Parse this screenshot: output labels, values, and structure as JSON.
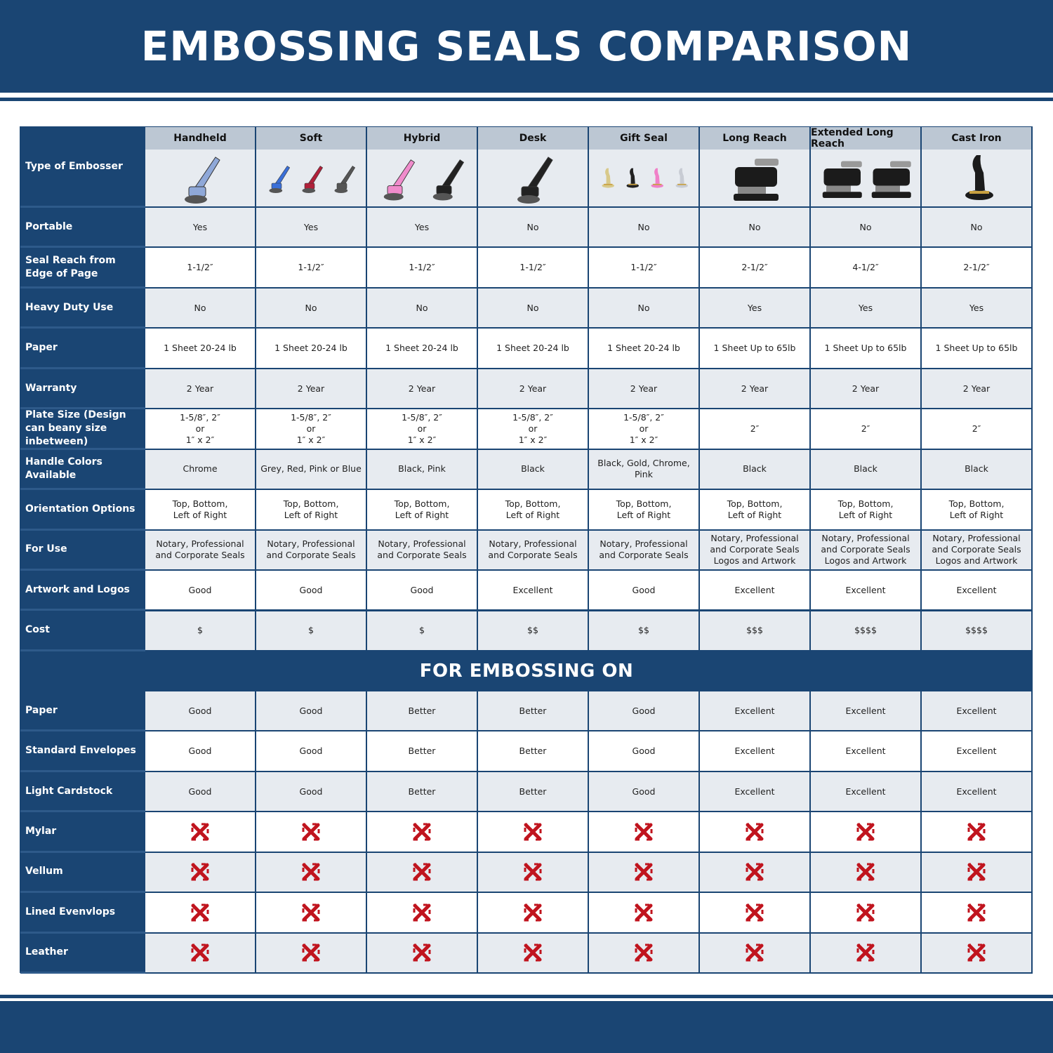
{
  "header": {
    "title": "EMBOSSING SEALS COMPARISON"
  },
  "colors": {
    "navy": "#1a4573",
    "cell_grey": "#e7ebf0",
    "column_header_grey": "#bcc7d3",
    "x_red": "#c0141e"
  },
  "table": {
    "corner_label": "Type of Embosser",
    "columns": [
      {
        "name": "Handheld",
        "image_colors": [
          "#8fa8d8"
        ]
      },
      {
        "name": "Soft",
        "image_colors": [
          "#3a6fd8",
          "#b0203a",
          "#555"
        ]
      },
      {
        "name": "Hybrid",
        "image_colors": [
          "#f08ccc",
          "#222"
        ]
      },
      {
        "name": "Desk",
        "image_colors": [
          "#222"
        ]
      },
      {
        "name": "Gift Seal",
        "image_colors": [
          "#d8c98a",
          "#222",
          "#f080c8",
          "#c8ccd4"
        ]
      },
      {
        "name": "Long Reach",
        "image_colors": [
          "#1b1b1b"
        ]
      },
      {
        "name": "Extended Long Reach",
        "image_colors": [
          "#1b1b1b",
          "#1b1b1b"
        ]
      },
      {
        "name": "Cast Iron",
        "image_colors": [
          "#1b1b1b"
        ]
      }
    ],
    "rows": [
      {
        "label": "Portable",
        "values": [
          "Yes",
          "Yes",
          "Yes",
          "No",
          "No",
          "No",
          "No",
          "No"
        ]
      },
      {
        "label": "Seal Reach from Edge of Page",
        "values": [
          "1-1/2″",
          "1-1/2″",
          "1-1/2″",
          "1-1/2″",
          "1-1/2″",
          "2-1/2″",
          "4-1/2″",
          "2-1/2″"
        ]
      },
      {
        "label": "Heavy Duty Use",
        "values": [
          "No",
          "No",
          "No",
          "No",
          "No",
          "Yes",
          "Yes",
          "Yes"
        ]
      },
      {
        "label": "Paper",
        "values": [
          "1 Sheet 20-24 lb",
          "1 Sheet 20-24 lb",
          "1 Sheet 20-24 lb",
          "1 Sheet 20-24 lb",
          "1 Sheet 20-24 lb",
          "1 Sheet Up to 65lb",
          "1 Sheet Up to 65lb",
          "1 Sheet Up to 65lb"
        ]
      },
      {
        "label": "Warranty",
        "values": [
          "2 Year",
          "2 Year",
          "2 Year",
          "2 Year",
          "2 Year",
          "2 Year",
          "2 Year",
          "2 Year"
        ]
      },
      {
        "label": "Plate Size (Design can beany size inbetween)",
        "values": [
          "1-5/8″, 2″\nor\n1″ x 2″",
          "1-5/8″, 2″\nor\n1″ x 2″",
          "1-5/8″, 2″\nor\n1″ x 2″",
          "1-5/8″, 2″\nor\n1″ x 2″",
          "1-5/8″, 2″\nor\n1″ x 2″",
          "2″",
          "2″",
          "2″"
        ]
      },
      {
        "label": "Handle Colors Available",
        "values": [
          "Chrome",
          "Grey, Red, Pink or Blue",
          "Black, Pink",
          "Black",
          "Black, Gold, Chrome, Pink",
          "Black",
          "Black",
          "Black"
        ]
      },
      {
        "label": "Orientation Options",
        "values": [
          "Top, Bottom,\nLeft of Right",
          "Top, Bottom,\nLeft of Right",
          "Top, Bottom,\nLeft of Right",
          "Top, Bottom,\nLeft of Right",
          "Top, Bottom,\nLeft of Right",
          "Top, Bottom,\nLeft of Right",
          "Top, Bottom,\nLeft of Right",
          "Top, Bottom,\nLeft of Right"
        ]
      },
      {
        "label": "For Use",
        "values": [
          "Notary, Professional\nand Corporate Seals",
          "Notary, Professional\nand Corporate Seals",
          "Notary, Professional\nand Corporate Seals",
          "Notary, Professional\nand Corporate Seals",
          "Notary, Professional\nand Corporate Seals",
          "Notary, Professional\nand Corporate Seals\nLogos and Artwork",
          "Notary, Professional\nand Corporate Seals\nLogos and Artwork",
          "Notary, Professional\nand Corporate Seals\nLogos and Artwork"
        ]
      },
      {
        "label": "Artwork and Logos",
        "values": [
          "Good",
          "Good",
          "Good",
          "Excellent",
          "Good",
          "Excellent",
          "Excellent",
          "Excellent"
        ]
      },
      {
        "label": "Cost",
        "values": [
          "$",
          "$",
          "$",
          "$$",
          "$$",
          "$$$",
          "$$$$",
          "$$$$"
        ]
      }
    ],
    "section_title": "FOR EMBOSSING ON",
    "section_rows": [
      {
        "label": "Paper",
        "values": [
          "Good",
          "Good",
          "Better",
          "Better",
          "Good",
          "Excellent",
          "Excellent",
          "Excellent"
        ]
      },
      {
        "label": "Standard Envelopes",
        "values": [
          "Good",
          "Good",
          "Better",
          "Better",
          "Good",
          "Excellent",
          "Excellent",
          "Excellent"
        ]
      },
      {
        "label": "Light Cardstock",
        "values": [
          "Good",
          "Good",
          "Better",
          "Better",
          "Good",
          "Excellent",
          "Excellent",
          "Excellent"
        ]
      },
      {
        "label": "Mylar",
        "values": [
          "x-icon",
          "x-icon",
          "x-icon",
          "x-icon",
          "x-icon",
          "x-icon",
          "x-icon",
          "x-icon"
        ]
      },
      {
        "label": "Vellum",
        "values": [
          "x-icon",
          "x-icon",
          "x-icon",
          "x-icon",
          "x-icon",
          "x-icon",
          "x-icon",
          "x-icon"
        ]
      },
      {
        "label": "Lined Evenvlops",
        "values": [
          "x-icon",
          "x-icon",
          "x-icon",
          "x-icon",
          "x-icon",
          "x-icon",
          "x-icon",
          "x-icon"
        ]
      },
      {
        "label": "Leather",
        "values": [
          "x-icon",
          "x-icon",
          "x-icon",
          "x-icon",
          "x-icon",
          "x-icon",
          "x-icon",
          "x-icon"
        ]
      }
    ]
  }
}
